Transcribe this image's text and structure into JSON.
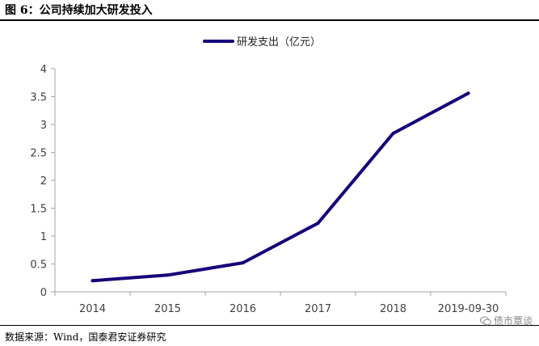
{
  "header": {
    "title": "图 6：公司持续加大研发投入"
  },
  "footer": {
    "source": "数据来源：Wind，国泰君安证券研究",
    "watermark": "债市覃谈"
  },
  "colors": {
    "series": "#14007a",
    "axis": "#a6a6a6",
    "text": "#404040"
  },
  "chart_data": {
    "type": "line",
    "categories": [
      "2014",
      "2015",
      "2016",
      "2017",
      "2018",
      "2019-09-30"
    ],
    "series": [
      {
        "name": "研发支出（亿元）",
        "values": [
          0.2,
          0.3,
          0.52,
          1.23,
          2.84,
          3.56
        ]
      }
    ],
    "ylim": [
      0,
      4
    ],
    "yticks": [
      "0",
      "0.5",
      "1",
      "1.5",
      "2",
      "2.5",
      "3",
      "3.5",
      "4"
    ],
    "xlabel": "",
    "ylabel": "",
    "grid": false,
    "legend": "top-center"
  }
}
